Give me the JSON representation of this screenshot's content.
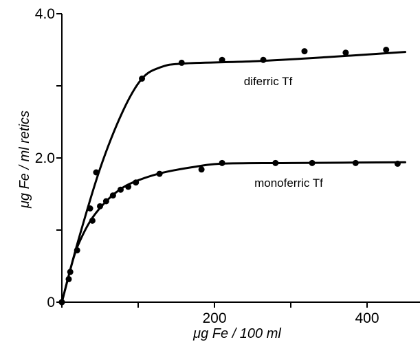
{
  "chart_data": {
    "type": "scatter",
    "xlabel": "μg Fe / 100 ml",
    "ylabel": "μg Fe / ml retics",
    "xlim": [
      0,
      450
    ],
    "ylim": [
      0,
      4.0
    ],
    "x_ticks": [
      {
        "value": 0,
        "label": ""
      },
      {
        "value": 100,
        "label": ""
      },
      {
        "value": 200,
        "label": "200"
      },
      {
        "value": 300,
        "label": ""
      },
      {
        "value": 400,
        "label": "400"
      }
    ],
    "y_ticks": [
      {
        "value": 0,
        "label": "0"
      },
      {
        "value": 1.0,
        "label": ""
      },
      {
        "value": 2.0,
        "label": "2.0"
      },
      {
        "value": 3.0,
        "label": ""
      },
      {
        "value": 4.0,
        "label": "4.0"
      }
    ],
    "grid": false,
    "legend": "none",
    "series": [
      {
        "name": "diferric Tf",
        "points": [
          {
            "x": 0,
            "y": 0
          },
          {
            "x": 45,
            "y": 1.8
          },
          {
            "x": 105,
            "y": 3.1
          },
          {
            "x": 157,
            "y": 3.32
          },
          {
            "x": 210,
            "y": 3.36
          },
          {
            "x": 264,
            "y": 3.36
          },
          {
            "x": 318,
            "y": 3.48
          },
          {
            "x": 372,
            "y": 3.46
          },
          {
            "x": 425,
            "y": 3.5
          }
        ],
        "curve": [
          {
            "x": 0,
            "y": 0
          },
          {
            "x": 20,
            "y": 0.8
          },
          {
            "x": 50,
            "y": 1.85
          },
          {
            "x": 80,
            "y": 2.65
          },
          {
            "x": 105,
            "y": 3.1
          },
          {
            "x": 130,
            "y": 3.26
          },
          {
            "x": 160,
            "y": 3.31
          },
          {
            "x": 250,
            "y": 3.34
          },
          {
            "x": 350,
            "y": 3.4
          },
          {
            "x": 450,
            "y": 3.47
          }
        ]
      },
      {
        "name": "monoferric Tf",
        "points": [
          {
            "x": 0,
            "y": 0
          },
          {
            "x": 9,
            "y": 0.32
          },
          {
            "x": 11,
            "y": 0.42
          },
          {
            "x": 20,
            "y": 0.72
          },
          {
            "x": 37,
            "y": 1.3
          },
          {
            "x": 40,
            "y": 1.13
          },
          {
            "x": 50,
            "y": 1.33
          },
          {
            "x": 58,
            "y": 1.4
          },
          {
            "x": 67,
            "y": 1.48
          },
          {
            "x": 77,
            "y": 1.56
          },
          {
            "x": 87,
            "y": 1.6
          },
          {
            "x": 97,
            "y": 1.66
          },
          {
            "x": 128,
            "y": 1.78
          },
          {
            "x": 183,
            "y": 1.84
          },
          {
            "x": 210,
            "y": 1.93
          },
          {
            "x": 280,
            "y": 1.93
          },
          {
            "x": 328,
            "y": 1.93
          },
          {
            "x": 385,
            "y": 1.93
          },
          {
            "x": 440,
            "y": 1.92
          }
        ],
        "curve": [
          {
            "x": 0,
            "y": 0
          },
          {
            "x": 15,
            "y": 0.6
          },
          {
            "x": 25,
            "y": 0.88
          },
          {
            "x": 40,
            "y": 1.17
          },
          {
            "x": 60,
            "y": 1.42
          },
          {
            "x": 80,
            "y": 1.59
          },
          {
            "x": 100,
            "y": 1.69
          },
          {
            "x": 130,
            "y": 1.79
          },
          {
            "x": 170,
            "y": 1.87
          },
          {
            "x": 210,
            "y": 1.92
          },
          {
            "x": 300,
            "y": 1.93
          },
          {
            "x": 450,
            "y": 1.94
          }
        ]
      }
    ]
  }
}
